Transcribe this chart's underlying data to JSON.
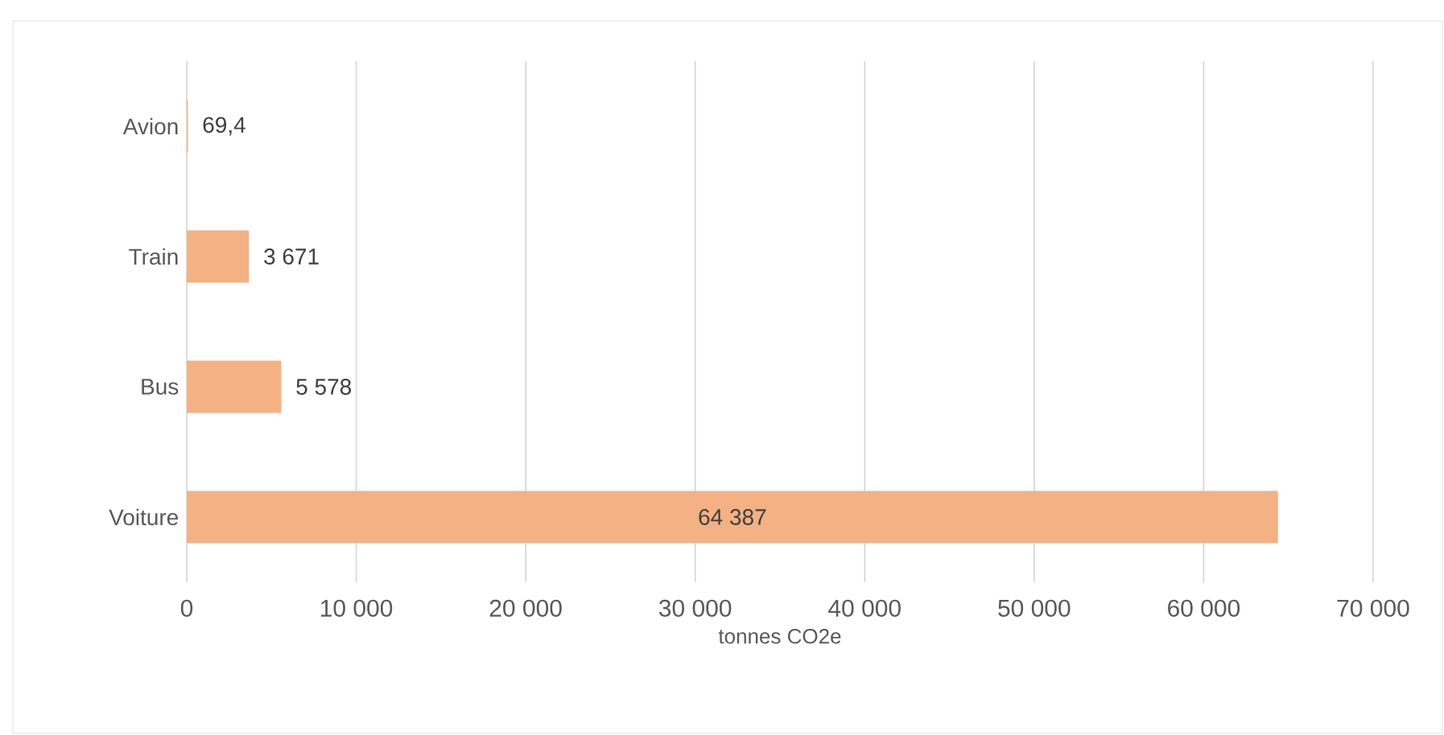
{
  "chart_data": {
    "type": "bar",
    "orientation": "horizontal",
    "xlabel": "tonnes CO2e",
    "categories": [
      "Avion",
      "Train",
      "Bus",
      "Voiture"
    ],
    "values": [
      69.4,
      3671,
      5578,
      64387
    ],
    "value_labels": [
      "69,4",
      "3 671",
      "5 578",
      "64 387"
    ],
    "color": "#f4b183",
    "xlim": [
      0,
      70000
    ],
    "xticks": [
      0,
      {
        "value": 10000,
        "label": "10 000"
      },
      {
        "value": 20000,
        "label": "20 000"
      },
      {
        "value": 30000,
        "label": "30 000"
      },
      {
        "value": 40000,
        "label": "40 000"
      },
      {
        "value": 50000,
        "label": "50 000"
      },
      {
        "value": 60000,
        "label": "60 000"
      },
      {
        "value": 70000,
        "label": "70 000"
      }
    ],
    "grid": "x"
  }
}
